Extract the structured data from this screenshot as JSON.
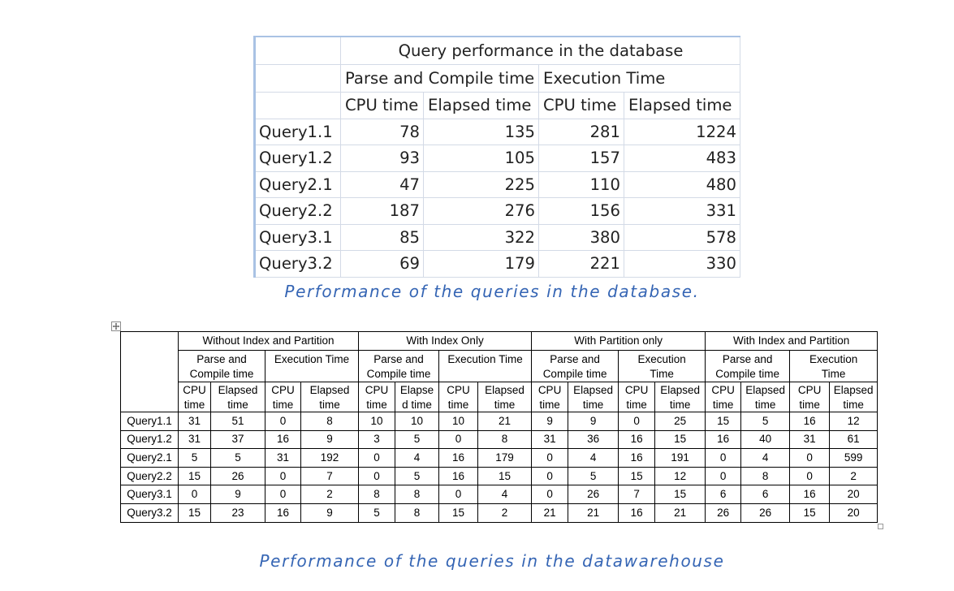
{
  "document": {
    "db_table": {
      "title": "Query performance in the database",
      "group_headers": [
        "Parse and Compile time",
        "Execution Time"
      ],
      "column_headers": [
        "CPU time",
        "Elapsed time",
        "CPU time",
        "Elapsed time"
      ],
      "rows": [
        {
          "label": "Query1.1",
          "values": [
            78,
            135,
            281,
            1224
          ]
        },
        {
          "label": "Query1.2",
          "values": [
            93,
            105,
            157,
            483
          ]
        },
        {
          "label": "Query2.1",
          "values": [
            47,
            225,
            110,
            480
          ]
        },
        {
          "label": "Query2.2",
          "values": [
            187,
            276,
            156,
            331
          ]
        },
        {
          "label": "Query3.1",
          "values": [
            85,
            322,
            380,
            578
          ]
        },
        {
          "label": "Query3.2",
          "values": [
            69,
            179,
            221,
            330
          ]
        }
      ]
    },
    "db_caption": "Performance of the queries in the database.",
    "dw_table": {
      "groups": [
        {
          "label": "Without Index and Partition",
          "subgroups": [
            {
              "lines": [
                "Parse and",
                "Compile time"
              ],
              "columns": [
                [
                  "CPU",
                  "time"
                ],
                [
                  "Elapsed",
                  "time"
                ]
              ]
            },
            {
              "lines": [
                "Execution Time"
              ],
              "columns": [
                [
                  "CPU",
                  "time"
                ],
                [
                  "Elapsed",
                  "time"
                ]
              ]
            }
          ]
        },
        {
          "label": "With Index Only",
          "subgroups": [
            {
              "lines": [
                "Parse and",
                "Compile time"
              ],
              "columns": [
                [
                  "CPU",
                  "time"
                ],
                [
                  "Elapse",
                  "d time"
                ]
              ]
            },
            {
              "lines": [
                "Execution Time"
              ],
              "columns": [
                [
                  "CPU",
                  "time"
                ],
                [
                  "Elapsed",
                  "time"
                ]
              ]
            }
          ]
        },
        {
          "label": "With Partition only",
          "subgroups": [
            {
              "lines": [
                "Parse and",
                "Compile time"
              ],
              "columns": [
                [
                  "CPU",
                  "time"
                ],
                [
                  "Elapsed",
                  "time"
                ]
              ]
            },
            {
              "lines": [
                "Execution",
                "Time"
              ],
              "columns": [
                [
                  "CPU",
                  "time"
                ],
                [
                  "Elapsed",
                  "time"
                ]
              ]
            }
          ]
        },
        {
          "label": "With Index and Partition",
          "subgroups": [
            {
              "lines": [
                "Parse and",
                "Compile time"
              ],
              "columns": [
                [
                  "CPU",
                  "time"
                ],
                [
                  "Elapsed",
                  "time"
                ]
              ]
            },
            {
              "lines": [
                "Execution",
                "Time"
              ],
              "columns": [
                [
                  "CPU",
                  "time"
                ],
                [
                  "Elapsed",
                  "time"
                ]
              ]
            }
          ]
        }
      ],
      "rows": [
        {
          "label": "Query1.1",
          "values": [
            31,
            51,
            0,
            8,
            10,
            10,
            10,
            21,
            9,
            9,
            0,
            25,
            15,
            5,
            16,
            12
          ]
        },
        {
          "label": "Query1.2",
          "values": [
            31,
            37,
            16,
            9,
            3,
            5,
            0,
            8,
            31,
            36,
            16,
            15,
            16,
            40,
            31,
            61
          ]
        },
        {
          "label": "Query2.1",
          "values": [
            5,
            5,
            31,
            192,
            0,
            4,
            16,
            179,
            0,
            4,
            16,
            191,
            0,
            4,
            0,
            599
          ]
        },
        {
          "label": "Query2.2",
          "values": [
            15,
            26,
            0,
            7,
            0,
            5,
            16,
            15,
            0,
            5,
            15,
            12,
            0,
            8,
            0,
            2
          ]
        },
        {
          "label": "Query3.1",
          "values": [
            0,
            9,
            0,
            2,
            8,
            8,
            0,
            4,
            0,
            26,
            7,
            15,
            6,
            6,
            16,
            20
          ]
        },
        {
          "label": "Query3.2",
          "values": [
            15,
            23,
            16,
            9,
            5,
            8,
            15,
            2,
            21,
            21,
            16,
            21,
            26,
            26,
            15,
            20
          ]
        }
      ]
    },
    "dw_caption": "Performance of the queries in the datawarehouse"
  },
  "icons": {
    "move_handle": "move-arrows-icon",
    "resize_handle": "resize-handle-icon"
  },
  "colors": {
    "caption": "#3565b4",
    "sheet_gridline": "#d3dae6",
    "sheet_edge": "#a9c2e4",
    "table_border": "#000000"
  }
}
